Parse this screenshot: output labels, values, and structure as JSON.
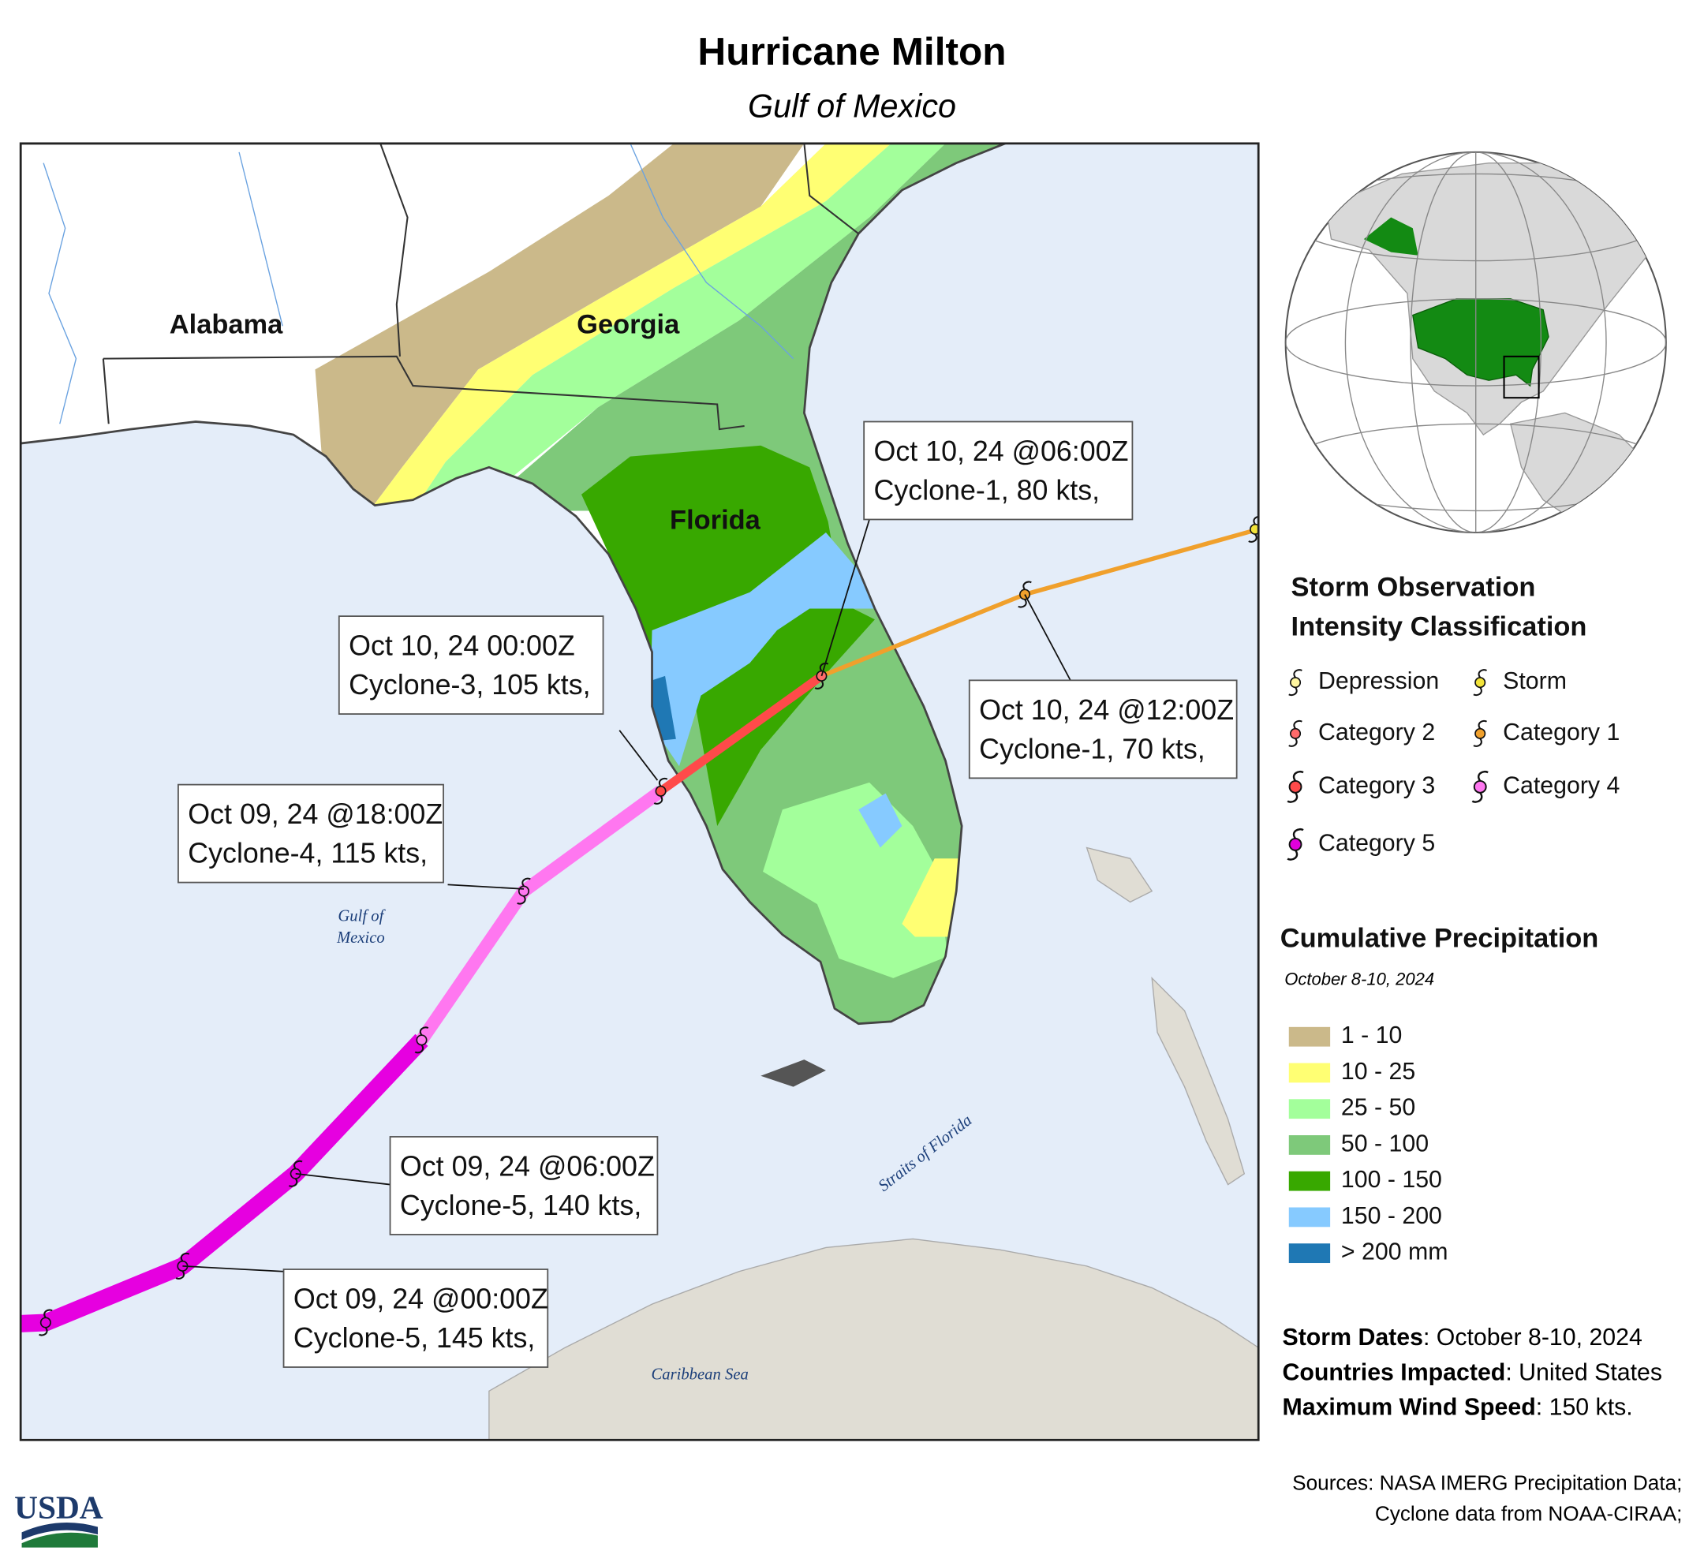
{
  "title": "Hurricane Milton",
  "subtitle": "Gulf of Mexico",
  "map_labels": {
    "states": [
      "Alabama",
      "Georgia",
      "Florida"
    ],
    "water": [
      "Gulf of",
      "Mexico",
      "Straits of Florida",
      "Caribbean Sea"
    ]
  },
  "track_annotations": [
    {
      "time": "Oct 10, 24 @06:00Z",
      "detail": "Cyclone-1, 80 kts,"
    },
    {
      "time": "Oct 10, 24 @12:00Z",
      "detail": "Cyclone-1, 70 kts,"
    },
    {
      "time": "Oct 10, 24 00:00Z",
      "detail": "Cyclone-3, 105 kts,"
    },
    {
      "time": "Oct 09, 24 @18:00Z",
      "detail": "Cyclone-4, 115 kts,"
    },
    {
      "time": "Oct 09, 24 @06:00Z",
      "detail": "Cyclone-5, 140 kts,"
    },
    {
      "time": "Oct 09, 24 @00:00Z",
      "detail": "Cyclone-5, 145 kts,"
    }
  ],
  "intensity_legend": {
    "title": [
      "Storm Observation",
      "Intensity Classification"
    ],
    "items": [
      {
        "label": "Depression",
        "color": "#fff6a0"
      },
      {
        "label": "Storm",
        "color": "#f2e33a"
      },
      {
        "label": "Category 2",
        "color": "#ff6b6b"
      },
      {
        "label": "Category 1",
        "color": "#f0a02c"
      },
      {
        "label": "Category 3",
        "color": "#ff4a4a"
      },
      {
        "label": "Category 4",
        "color": "#ff77f0"
      },
      {
        "label": "Category 5",
        "color": "#e000dc"
      }
    ]
  },
  "precip_legend": {
    "title": "Cumulative Precipitation",
    "subtitle": "October 8-10, 2024",
    "items": [
      {
        "label": "1 - 10",
        "color": "#cbb98a"
      },
      {
        "label": "10 - 25",
        "color": "#ffff73"
      },
      {
        "label": "25 - 50",
        "color": "#a3ff9b"
      },
      {
        "label": "50 - 100",
        "color": "#7ec97a"
      },
      {
        "label": "100 - 150",
        "color": "#38a800"
      },
      {
        "label": "150 - 200",
        "color": "#86caff"
      },
      {
        "label": "> 200 mm",
        "color": "#1f78b4"
      }
    ]
  },
  "storm_info": [
    {
      "key": "Storm Dates",
      "value": ": October 8-10, 2024"
    },
    {
      "key": "Countries Impacted",
      "value": ": United States"
    },
    {
      "key": "Maximum Wind Speed",
      "value": ": 150 kts."
    }
  ],
  "sources": [
    "Sources: NASA IMERG Precipitation Data;",
    "Cyclone data from NOAA-CIRAA;"
  ],
  "logo": "USDA"
}
